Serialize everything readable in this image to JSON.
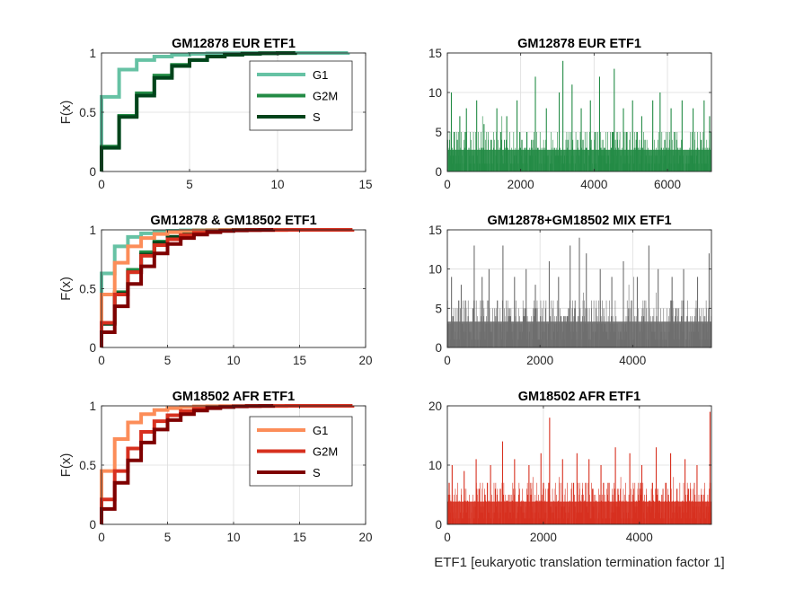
{
  "figure": {
    "xlabel": "ETF1 [eukaryotic translation termination factor 1]"
  },
  "chart_data": [
    {
      "type": "line",
      "subtype": "ecdf",
      "title": "GM12878 EUR ETF1",
      "ylabel": "F(x)",
      "xlim": [
        0,
        15
      ],
      "ylim": [
        0,
        1
      ],
      "xticks": [
        "0",
        "5",
        "10",
        "15"
      ],
      "yticks": [
        "0",
        "0.5",
        "1"
      ],
      "grid": true,
      "legend": "top-right",
      "series": [
        {
          "name": "G1",
          "color": "#66c2a4",
          "x": [
            0,
            1,
            2,
            3,
            4,
            5,
            6,
            7,
            8,
            9,
            10,
            11,
            12,
            13,
            14
          ],
          "y": [
            0.63,
            0.86,
            0.94,
            0.97,
            0.985,
            0.992,
            0.996,
            0.998,
            0.999,
            0.9995,
            0.9997,
            0.9998,
            0.9999,
            0.99995,
            1
          ]
        },
        {
          "name": "G2M",
          "color": "#238b45",
          "x": [
            0,
            1,
            2,
            3,
            4,
            5,
            6,
            7,
            8,
            9,
            10,
            11
          ],
          "y": [
            0.21,
            0.47,
            0.66,
            0.81,
            0.9,
            0.94,
            0.97,
            0.985,
            0.993,
            0.997,
            0.999,
            1
          ]
        },
        {
          "name": "S",
          "color": "#00441b",
          "x": [
            0,
            1,
            2,
            3,
            4,
            5,
            6,
            7,
            8,
            9,
            10,
            11
          ],
          "y": [
            0.2,
            0.46,
            0.64,
            0.79,
            0.89,
            0.94,
            0.97,
            0.985,
            0.993,
            0.997,
            0.999,
            1
          ]
        }
      ]
    },
    {
      "type": "bar",
      "subtype": "per-cell",
      "title": "GM12878 EUR ETF1",
      "xlim": [
        0,
        7200
      ],
      "ylim": [
        0,
        15
      ],
      "xticks": [
        "0",
        "2000",
        "4000",
        "6000"
      ],
      "yticks": [
        "0",
        "5",
        "10",
        "15"
      ],
      "grid": true,
      "color": "#238b45",
      "n": 7200,
      "baseline": [
        0,
        5
      ],
      "peaks": [
        {
          "x": 110,
          "y": 10
        },
        {
          "x": 340,
          "y": 7
        },
        {
          "x": 520,
          "y": 8
        },
        {
          "x": 800,
          "y": 9
        },
        {
          "x": 1000,
          "y": 6
        },
        {
          "x": 1350,
          "y": 8
        },
        {
          "x": 1620,
          "y": 7
        },
        {
          "x": 1900,
          "y": 9
        },
        {
          "x": 2400,
          "y": 12
        },
        {
          "x": 2700,
          "y": 8
        },
        {
          "x": 3050,
          "y": 10
        },
        {
          "x": 3150,
          "y": 14
        },
        {
          "x": 3400,
          "y": 11
        },
        {
          "x": 3650,
          "y": 8
        },
        {
          "x": 3900,
          "y": 9
        },
        {
          "x": 4150,
          "y": 12
        },
        {
          "x": 4550,
          "y": 13
        },
        {
          "x": 4800,
          "y": 8
        },
        {
          "x": 5050,
          "y": 9
        },
        {
          "x": 5300,
          "y": 7
        },
        {
          "x": 5600,
          "y": 9
        },
        {
          "x": 5800,
          "y": 10
        },
        {
          "x": 6100,
          "y": 8
        },
        {
          "x": 6400,
          "y": 9
        },
        {
          "x": 6700,
          "y": 8
        },
        {
          "x": 7000,
          "y": 9
        },
        {
          "x": 7150,
          "y": 7
        }
      ]
    },
    {
      "type": "line",
      "subtype": "ecdf",
      "title": "GM12878 & GM18502 ETF1",
      "ylabel": "F(x)",
      "xlim": [
        0,
        20
      ],
      "ylim": [
        0,
        1
      ],
      "xticks": [
        "0",
        "5",
        "10",
        "15",
        "20"
      ],
      "yticks": [
        "0",
        "0.5",
        "1"
      ],
      "grid": true,
      "series": [
        {
          "color": "#66c2a4",
          "x": [
            0,
            1,
            2,
            3,
            4,
            5,
            6,
            7,
            8,
            9,
            10,
            11,
            12,
            13,
            14
          ],
          "y": [
            0.63,
            0.86,
            0.94,
            0.97,
            0.985,
            0.992,
            0.996,
            0.998,
            0.999,
            0.9995,
            0.9997,
            0.9998,
            0.9999,
            0.99995,
            1
          ]
        },
        {
          "color": "#238b45",
          "x": [
            0,
            1,
            2,
            3,
            4,
            5,
            6,
            7,
            8,
            9,
            10,
            11
          ],
          "y": [
            0.21,
            0.47,
            0.66,
            0.81,
            0.9,
            0.94,
            0.97,
            0.985,
            0.993,
            0.997,
            0.999,
            1
          ]
        },
        {
          "color": "#00441b",
          "x": [
            0,
            1,
            2,
            3,
            4,
            5,
            6,
            7,
            8,
            9,
            10,
            11
          ],
          "y": [
            0.2,
            0.46,
            0.64,
            0.79,
            0.89,
            0.94,
            0.97,
            0.985,
            0.993,
            0.997,
            0.999,
            1
          ]
        },
        {
          "color": "#fc8d59",
          "x": [
            0,
            1,
            2,
            3,
            4,
            5,
            6,
            7,
            8,
            9,
            10,
            11,
            12,
            13,
            14,
            15,
            16,
            17,
            18,
            19
          ],
          "y": [
            0.45,
            0.72,
            0.86,
            0.93,
            0.965,
            0.98,
            0.99,
            0.995,
            0.997,
            0.998,
            0.9985,
            0.999,
            0.9993,
            0.9995,
            0.9997,
            0.9998,
            0.9999,
            0.99995,
            0.99998,
            1
          ]
        },
        {
          "color": "#d7301f",
          "x": [
            0,
            1,
            2,
            3,
            4,
            5,
            6,
            7,
            8,
            9,
            10,
            11,
            12,
            13,
            14,
            15,
            16,
            17,
            18,
            19
          ],
          "y": [
            0.21,
            0.45,
            0.64,
            0.78,
            0.87,
            0.92,
            0.955,
            0.975,
            0.987,
            0.993,
            0.996,
            0.998,
            0.999,
            0.9995,
            0.9997,
            0.9998,
            0.9999,
            0.99995,
            0.99998,
            1
          ]
        },
        {
          "color": "#7f0000",
          "x": [
            0,
            1,
            2,
            3,
            4,
            5,
            6,
            7,
            8,
            9,
            10,
            11,
            12,
            13
          ],
          "y": [
            0.13,
            0.35,
            0.54,
            0.69,
            0.8,
            0.88,
            0.93,
            0.96,
            0.98,
            0.99,
            0.995,
            0.998,
            0.999,
            1
          ]
        }
      ]
    },
    {
      "type": "bar",
      "subtype": "per-cell",
      "title": "GM12878+GM18502 MIX ETF1",
      "xlim": [
        0,
        5700
      ],
      "ylim": [
        0,
        15
      ],
      "xticks": [
        "0",
        "2000",
        "4000"
      ],
      "yticks": [
        "0",
        "5",
        "10",
        "15"
      ],
      "grid": true,
      "color": "#6e6e6e",
      "n": 5700,
      "baseline": [
        0,
        6
      ],
      "peaks": [
        {
          "x": 90,
          "y": 9
        },
        {
          "x": 300,
          "y": 8
        },
        {
          "x": 580,
          "y": 13
        },
        {
          "x": 750,
          "y": 9
        },
        {
          "x": 900,
          "y": 10
        },
        {
          "x": 1200,
          "y": 13
        },
        {
          "x": 1450,
          "y": 9
        },
        {
          "x": 1700,
          "y": 10
        },
        {
          "x": 1900,
          "y": 8
        },
        {
          "x": 2200,
          "y": 11
        },
        {
          "x": 2400,
          "y": 9
        },
        {
          "x": 2650,
          "y": 13
        },
        {
          "x": 2850,
          "y": 14
        },
        {
          "x": 3000,
          "y": 12
        },
        {
          "x": 3300,
          "y": 10
        },
        {
          "x": 3550,
          "y": 9
        },
        {
          "x": 3800,
          "y": 11
        },
        {
          "x": 4100,
          "y": 9
        },
        {
          "x": 4350,
          "y": 13
        },
        {
          "x": 4550,
          "y": 10
        },
        {
          "x": 4850,
          "y": 9
        },
        {
          "x": 5100,
          "y": 10
        },
        {
          "x": 5400,
          "y": 9
        },
        {
          "x": 5650,
          "y": 12
        }
      ]
    },
    {
      "type": "line",
      "subtype": "ecdf",
      "title": "GM18502 AFR ETF1",
      "ylabel": "F(x)",
      "xlim": [
        0,
        20
      ],
      "ylim": [
        0,
        1
      ],
      "xticks": [
        "0",
        "5",
        "10",
        "15",
        "20"
      ],
      "yticks": [
        "0",
        "0.5",
        "1"
      ],
      "grid": true,
      "legend": "top-right",
      "series": [
        {
          "name": "G1",
          "color": "#fc8d59",
          "x": [
            0,
            1,
            2,
            3,
            4,
            5,
            6,
            7,
            8,
            9,
            10,
            11,
            12,
            13,
            14,
            15,
            16,
            17,
            18,
            19
          ],
          "y": [
            0.45,
            0.72,
            0.86,
            0.93,
            0.965,
            0.98,
            0.99,
            0.995,
            0.997,
            0.998,
            0.9985,
            0.999,
            0.9993,
            0.9995,
            0.9997,
            0.9998,
            0.9999,
            0.99995,
            0.99998,
            1
          ]
        },
        {
          "name": "G2M",
          "color": "#d7301f",
          "x": [
            0,
            1,
            2,
            3,
            4,
            5,
            6,
            7,
            8,
            9,
            10,
            11,
            12,
            13,
            14,
            15,
            16,
            17,
            18,
            19
          ],
          "y": [
            0.21,
            0.45,
            0.64,
            0.78,
            0.87,
            0.92,
            0.955,
            0.975,
            0.987,
            0.993,
            0.996,
            0.998,
            0.999,
            0.9995,
            0.9997,
            0.9998,
            0.9999,
            0.99995,
            0.99998,
            1
          ]
        },
        {
          "name": "S",
          "color": "#7f0000",
          "x": [
            0,
            1,
            2,
            3,
            4,
            5,
            6,
            7,
            8,
            9,
            10,
            11,
            12,
            13
          ],
          "y": [
            0.13,
            0.35,
            0.54,
            0.69,
            0.8,
            0.88,
            0.93,
            0.96,
            0.98,
            0.99,
            0.995,
            0.998,
            0.999,
            1
          ]
        }
      ]
    },
    {
      "type": "bar",
      "subtype": "per-cell",
      "title": "GM18502 AFR ETF1",
      "xlim": [
        0,
        5500
      ],
      "ylim": [
        0,
        20
      ],
      "xticks": [
        "0",
        "2000",
        "4000"
      ],
      "yticks": [
        "0",
        "10",
        "20"
      ],
      "grid": true,
      "color": "#d7301f",
      "n": 5500,
      "baseline": [
        0,
        7
      ],
      "peaks": [
        {
          "x": 100,
          "y": 10
        },
        {
          "x": 350,
          "y": 9
        },
        {
          "x": 600,
          "y": 11
        },
        {
          "x": 900,
          "y": 10
        },
        {
          "x": 1150,
          "y": 14
        },
        {
          "x": 1400,
          "y": 11
        },
        {
          "x": 1700,
          "y": 10
        },
        {
          "x": 1950,
          "y": 12
        },
        {
          "x": 2130,
          "y": 18
        },
        {
          "x": 2400,
          "y": 11
        },
        {
          "x": 2700,
          "y": 12
        },
        {
          "x": 2950,
          "y": 11
        },
        {
          "x": 3200,
          "y": 10
        },
        {
          "x": 3500,
          "y": 13
        },
        {
          "x": 3800,
          "y": 12
        },
        {
          "x": 4050,
          "y": 10
        },
        {
          "x": 4350,
          "y": 13
        },
        {
          "x": 4650,
          "y": 12
        },
        {
          "x": 4950,
          "y": 11
        },
        {
          "x": 5200,
          "y": 10
        },
        {
          "x": 5470,
          "y": 19
        }
      ]
    }
  ]
}
